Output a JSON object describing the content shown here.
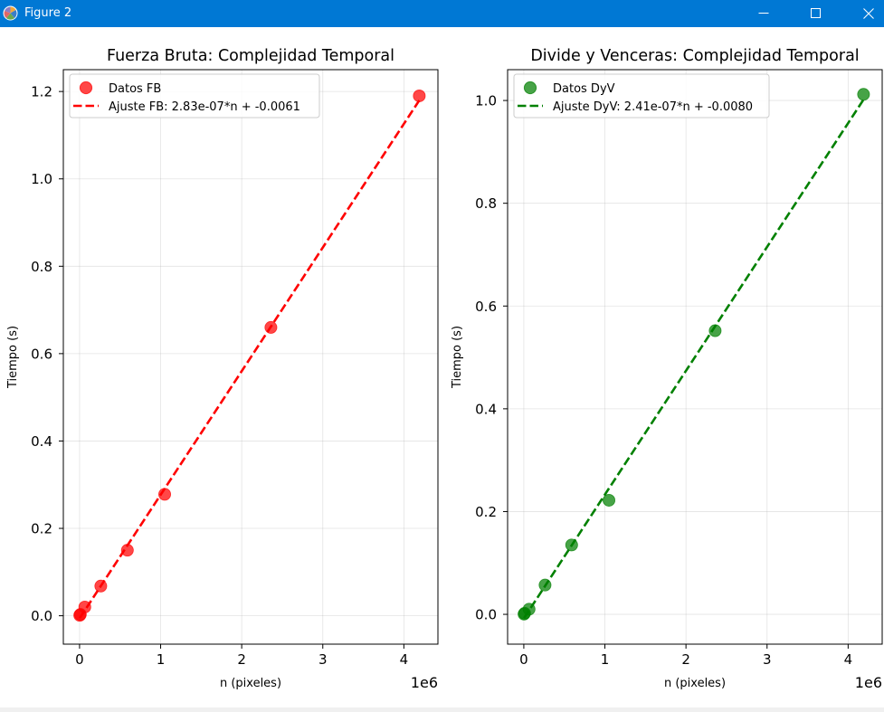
{
  "window": {
    "title": "Figure 2",
    "icons": {
      "app": "matplotlib-icon",
      "minimize": "minimize-icon",
      "maximize": "maximize-icon",
      "close": "close-icon"
    },
    "titlebar_color": "#0078d4"
  },
  "chart_data": [
    {
      "type": "scatter",
      "title": "Fuerza Bruta: Complejidad Temporal",
      "xlabel": "n (pixeles)",
      "ylabel": "Tiempo (s)",
      "x_offset_label": "1e6",
      "xlim": [
        -0.2,
        4.42
      ],
      "ylim": [
        -0.065,
        1.25
      ],
      "xticks": [
        0,
        1,
        2,
        3,
        4
      ],
      "xtick_labels": [
        "0",
        "1",
        "2",
        "3",
        "4"
      ],
      "yticks": [
        0.0,
        0.2,
        0.4,
        0.6,
        0.8,
        1.0,
        1.2
      ],
      "ytick_labels": [
        "0.0",
        "0.2",
        "0.4",
        "0.6",
        "0.8",
        "1.0",
        "1.2"
      ],
      "grid": true,
      "legend_position": "top-left",
      "series": [
        {
          "name": "Datos FB",
          "kind": "scatter",
          "color": "#ff0000",
          "x": [
            0.0025,
            0.01,
            0.065,
            0.262,
            0.59,
            1.05,
            2.36,
            4.19
          ],
          "y": [
            0.001,
            0.003,
            0.02,
            0.068,
            0.15,
            0.278,
            0.66,
            1.19
          ]
        },
        {
          "name": "Ajuste FB: 2.83e-07*n + -0.0061",
          "kind": "line",
          "style": "dashed",
          "color": "#ff0000",
          "x": [
            0.0025,
            4.19
          ],
          "y": [
            -0.0054,
            1.1797
          ]
        }
      ]
    },
    {
      "type": "scatter",
      "title": "Divide y Venceras: Complejidad Temporal",
      "xlabel": "n (pixeles)",
      "ylabel": "Tiempo (s)",
      "x_offset_label": "1e6",
      "xlim": [
        -0.2,
        4.42
      ],
      "ylim": [
        -0.058,
        1.06
      ],
      "xticks": [
        0,
        1,
        2,
        3,
        4
      ],
      "xtick_labels": [
        "0",
        "1",
        "2",
        "3",
        "4"
      ],
      "yticks": [
        0.0,
        0.2,
        0.4,
        0.6,
        0.8,
        1.0
      ],
      "ytick_labels": [
        "0.0",
        "0.2",
        "0.4",
        "0.6",
        "0.8",
        "1.0"
      ],
      "grid": true,
      "legend_position": "top-left",
      "series": [
        {
          "name": "Datos DyV",
          "kind": "scatter",
          "color": "#008000",
          "x": [
            0.0025,
            0.01,
            0.065,
            0.262,
            0.59,
            1.05,
            2.36,
            4.19
          ],
          "y": [
            0.0005,
            0.002,
            0.01,
            0.057,
            0.135,
            0.222,
            0.552,
            1.012
          ]
        },
        {
          "name": "Ajuste DyV: 2.41e-07*n + -0.0080",
          "kind": "line",
          "style": "dashed",
          "color": "#008000",
          "x": [
            0.0025,
            4.19
          ],
          "y": [
            -0.0074,
            1.0018
          ]
        }
      ]
    }
  ]
}
